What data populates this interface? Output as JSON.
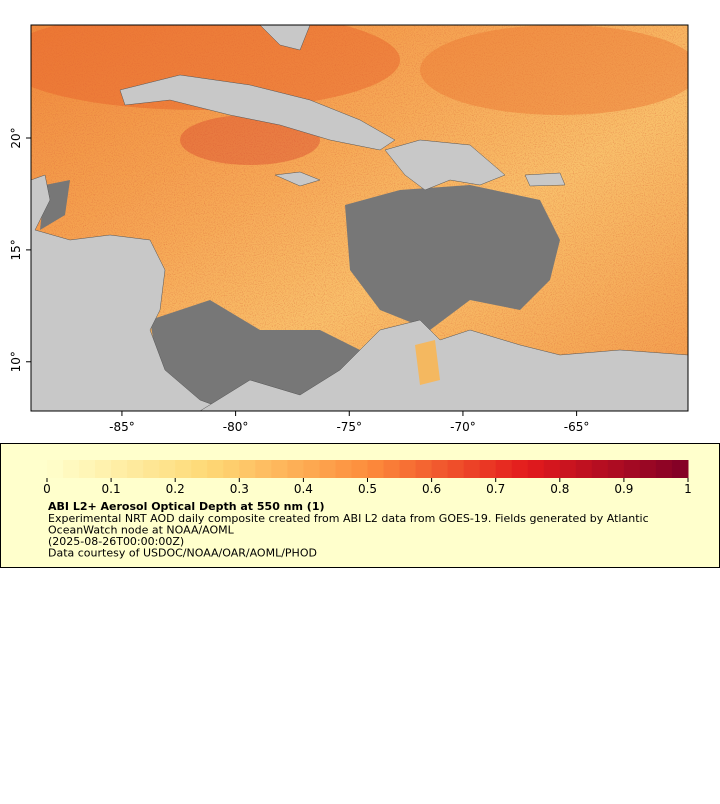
{
  "chart_data": {
    "type": "map",
    "xlim": [
      -89,
      -60.1
    ],
    "ylim": [
      7.8,
      25.05
    ],
    "xticks": [
      {
        "value": -85,
        "label": "-85°"
      },
      {
        "value": -80,
        "label": "-80°"
      },
      {
        "value": -75,
        "label": "-75°"
      },
      {
        "value": -70,
        "label": "-70°"
      },
      {
        "value": -65,
        "label": "-65°"
      }
    ],
    "yticks": [
      {
        "value": 10,
        "label": "10°"
      },
      {
        "value": 15,
        "label": "15°"
      },
      {
        "value": 20,
        "label": "20°"
      }
    ],
    "colorbar": {
      "range": [
        0,
        1
      ],
      "ticks": [
        0,
        0.1,
        0.2,
        0.3,
        0.4,
        0.5,
        0.6,
        0.7,
        0.8,
        0.9,
        1
      ]
    },
    "title": "ABI L2+ Aerosol Optical Depth at 550 nm (1)",
    "description": [
      "Experimental NRT AOD daily composite created from ABI L2 data from GOES-19. Fields generated by Atlantic",
      "OceanWatch node at NOAA/AOML",
      "(2025-08-26T00:00:00Z)",
      "Data courtesy of USDOC/NOAA/OAR/AOML/PHOD"
    ]
  }
}
